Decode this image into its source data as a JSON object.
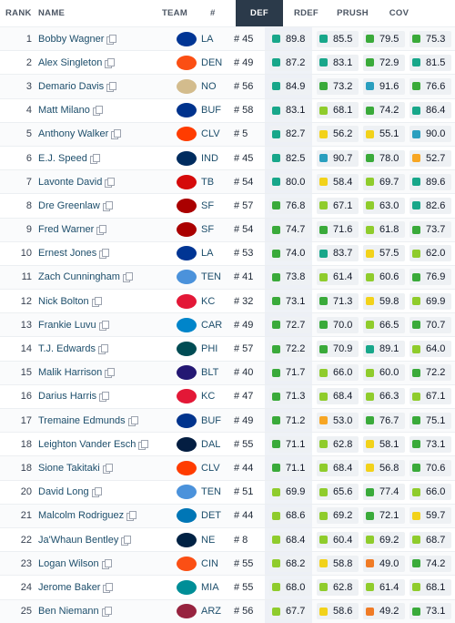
{
  "columns": {
    "rank": "RANK",
    "name": "NAME",
    "team": "TEAM",
    "number": "#",
    "def": "DEF",
    "rdef": "RDEF",
    "prush": "PRUSH",
    "cov": "COV"
  },
  "grade_colors": {
    "elite": "#2a9fbf",
    "high": "#18a78a",
    "above_avg": "#3aaa3a",
    "avg": "#8fcc2c",
    "below_avg": "#f2d21a",
    "low": "#f7a624",
    "poor": "#f07b25"
  },
  "team_colors": {
    "LA": "#003594",
    "DEN": "#fb4f14",
    "NO": "#d3bc8d",
    "BUF": "#00338d",
    "CLV": "#ff3c00",
    "IND": "#002c5f",
    "TB": "#d50a0a",
    "SF": "#aa0000",
    "TEN": "#4b92db",
    "KC": "#e31837",
    "CAR": "#0085ca",
    "PHI": "#004c54",
    "BLT": "#241773",
    "DAL": "#041e42",
    "DET": "#0076b6",
    "NE": "#002244",
    "CIN": "#fb4f14",
    "MIA": "#008e97",
    "ARZ": "#97233f"
  },
  "rows": [
    {
      "rank": "1",
      "name": "Bobby Wagner",
      "team": "LA",
      "number": "# 45",
      "def": "89.8",
      "rdef": "85.5",
      "prush": "79.5",
      "cov": "75.3"
    },
    {
      "rank": "2",
      "name": "Alex Singleton",
      "team": "DEN",
      "number": "# 49",
      "def": "87.2",
      "rdef": "83.1",
      "prush": "72.9",
      "cov": "81.5"
    },
    {
      "rank": "3",
      "name": "Demario Davis",
      "team": "NO",
      "number": "# 56",
      "def": "84.9",
      "rdef": "73.2",
      "prush": "91.6",
      "cov": "76.6"
    },
    {
      "rank": "4",
      "name": "Matt Milano",
      "team": "BUF",
      "number": "# 58",
      "def": "83.1",
      "rdef": "68.1",
      "prush": "74.2",
      "cov": "86.4"
    },
    {
      "rank": "5",
      "name": "Anthony Walker",
      "team": "CLV",
      "number": "# 5",
      "def": "82.7",
      "rdef": "56.2",
      "prush": "55.1",
      "cov": "90.0"
    },
    {
      "rank": "6",
      "name": "E.J. Speed",
      "team": "IND",
      "number": "# 45",
      "def": "82.5",
      "rdef": "90.7",
      "prush": "78.0",
      "cov": "52.7"
    },
    {
      "rank": "7",
      "name": "Lavonte David",
      "team": "TB",
      "number": "# 54",
      "def": "80.0",
      "rdef": "58.4",
      "prush": "69.7",
      "cov": "89.6"
    },
    {
      "rank": "8",
      "name": "Dre Greenlaw",
      "team": "SF",
      "number": "# 57",
      "def": "76.8",
      "rdef": "67.1",
      "prush": "63.0",
      "cov": "82.6"
    },
    {
      "rank": "9",
      "name": "Fred Warner",
      "team": "SF",
      "number": "# 54",
      "def": "74.7",
      "rdef": "71.6",
      "prush": "61.8",
      "cov": "73.7"
    },
    {
      "rank": "10",
      "name": "Ernest Jones",
      "team": "LA",
      "number": "# 53",
      "def": "74.0",
      "rdef": "83.7",
      "prush": "57.5",
      "cov": "62.0"
    },
    {
      "rank": "11",
      "name": "Zach Cunningham",
      "team": "TEN",
      "number": "# 41",
      "def": "73.8",
      "rdef": "61.4",
      "prush": "60.6",
      "cov": "76.9"
    },
    {
      "rank": "12",
      "name": "Nick Bolton",
      "team": "KC",
      "number": "# 32",
      "def": "73.1",
      "rdef": "71.3",
      "prush": "59.8",
      "cov": "69.9"
    },
    {
      "rank": "13",
      "name": "Frankie Luvu",
      "team": "CAR",
      "number": "# 49",
      "def": "72.7",
      "rdef": "70.0",
      "prush": "66.5",
      "cov": "70.7"
    },
    {
      "rank": "14",
      "name": "T.J. Edwards",
      "team": "PHI",
      "number": "# 57",
      "def": "72.2",
      "rdef": "70.9",
      "prush": "89.1",
      "cov": "64.0"
    },
    {
      "rank": "15",
      "name": "Malik Harrison",
      "team": "BLT",
      "number": "# 40",
      "def": "71.7",
      "rdef": "66.0",
      "prush": "60.0",
      "cov": "72.2"
    },
    {
      "rank": "16",
      "name": "Darius Harris",
      "team": "KC",
      "number": "# 47",
      "def": "71.3",
      "rdef": "68.4",
      "prush": "66.3",
      "cov": "67.1"
    },
    {
      "rank": "17",
      "name": "Tremaine Edmunds",
      "team": "BUF",
      "number": "# 49",
      "def": "71.2",
      "rdef": "53.0",
      "prush": "76.7",
      "cov": "75.1"
    },
    {
      "rank": "18",
      "name": "Leighton Vander Esch",
      "team": "DAL",
      "number": "# 55",
      "def": "71.1",
      "rdef": "62.8",
      "prush": "58.1",
      "cov": "73.1"
    },
    {
      "rank": "18",
      "name": "Sione Takitaki",
      "team": "CLV",
      "number": "# 44",
      "def": "71.1",
      "rdef": "68.4",
      "prush": "56.8",
      "cov": "70.6"
    },
    {
      "rank": "20",
      "name": "David Long",
      "team": "TEN",
      "number": "# 51",
      "def": "69.9",
      "rdef": "65.6",
      "prush": "77.4",
      "cov": "66.0"
    },
    {
      "rank": "21",
      "name": "Malcolm Rodriguez",
      "team": "DET",
      "number": "# 44",
      "def": "68.6",
      "rdef": "69.2",
      "prush": "72.1",
      "cov": "59.7"
    },
    {
      "rank": "22",
      "name": "Ja'Whaun Bentley",
      "team": "NE",
      "number": "# 8",
      "def": "68.4",
      "rdef": "60.4",
      "prush": "69.2",
      "cov": "68.7"
    },
    {
      "rank": "23",
      "name": "Logan Wilson",
      "team": "CIN",
      "number": "# 55",
      "def": "68.2",
      "rdef": "58.8",
      "prush": "49.0",
      "cov": "74.2"
    },
    {
      "rank": "24",
      "name": "Jerome Baker",
      "team": "MIA",
      "number": "# 55",
      "def": "68.0",
      "rdef": "62.8",
      "prush": "61.4",
      "cov": "68.1"
    },
    {
      "rank": "25",
      "name": "Ben Niemann",
      "team": "ARZ",
      "number": "# 56",
      "def": "67.7",
      "rdef": "58.6",
      "prush": "49.2",
      "cov": "73.1"
    }
  ]
}
